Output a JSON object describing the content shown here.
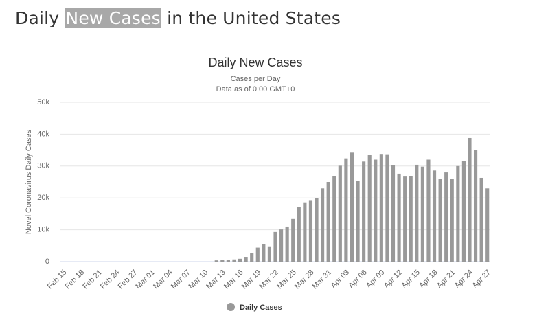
{
  "heading": {
    "before": "Daily",
    "highlight": "New Cases",
    "after": "in the United States"
  },
  "chart_data": {
    "type": "bar",
    "title": "Daily New Cases",
    "subtitle": "Cases per Day",
    "note": "Data as of 0:00 GMT+0",
    "y_label": "Novel Coronavirus Daily Cases",
    "categories": [
      "Feb 15",
      null,
      null,
      "Feb 18",
      null,
      null,
      "Feb 21",
      null,
      null,
      "Feb 24",
      null,
      null,
      "Feb 27",
      null,
      null,
      "Mar 01",
      null,
      null,
      "Mar 04",
      null,
      null,
      "Mar 07",
      null,
      null,
      "Mar 10",
      null,
      null,
      "Mar 13",
      null,
      null,
      "Mar 16",
      null,
      null,
      "Mar 19",
      null,
      null,
      "Mar 22",
      null,
      null,
      "Mar 25",
      null,
      null,
      "Mar 28",
      null,
      null,
      "Mar 31",
      null,
      null,
      "Apr 03",
      null,
      null,
      "Apr 06",
      null,
      null,
      "Apr 09",
      null,
      null,
      "Apr 12",
      null,
      null,
      "Apr 15",
      null,
      null,
      "Apr 18",
      null,
      null,
      "Apr 21",
      null,
      null,
      "Apr 24",
      null,
      null,
      "Apr 27"
    ],
    "series": [
      {
        "name": "Daily Cases",
        "color": "#999999",
        "values": [
          0,
          0,
          0,
          0,
          0,
          0,
          0,
          0,
          0,
          0,
          0,
          0,
          0,
          0,
          0,
          0,
          0,
          0,
          0,
          0,
          0,
          0,
          0,
          0,
          0,
          0,
          400,
          500,
          550,
          700,
          900,
          1500,
          2800,
          4400,
          5500,
          4800,
          9300,
          10100,
          11000,
          13400,
          17200,
          18600,
          19300,
          20000,
          23000,
          25000,
          26800,
          30100,
          32400,
          34200,
          25400,
          31400,
          33500,
          32000,
          33800,
          33700,
          30200,
          27600,
          26700,
          26900,
          30400,
          29800,
          32000,
          28600,
          26000,
          28000,
          26000,
          30000,
          31600,
          38800,
          35000,
          26300,
          23000
        ]
      }
    ],
    "ylim": [
      0,
      50000
    ],
    "yticks": [
      0,
      {
        "value": 10000,
        "label": "10k"
      },
      {
        "value": 20000,
        "label": "20k"
      },
      {
        "value": 30000,
        "label": "30k"
      },
      {
        "value": 40000,
        "label": "40k"
      },
      {
        "value": 50000,
        "label": "50k"
      }
    ],
    "grid": true,
    "legend": "bottom"
  }
}
